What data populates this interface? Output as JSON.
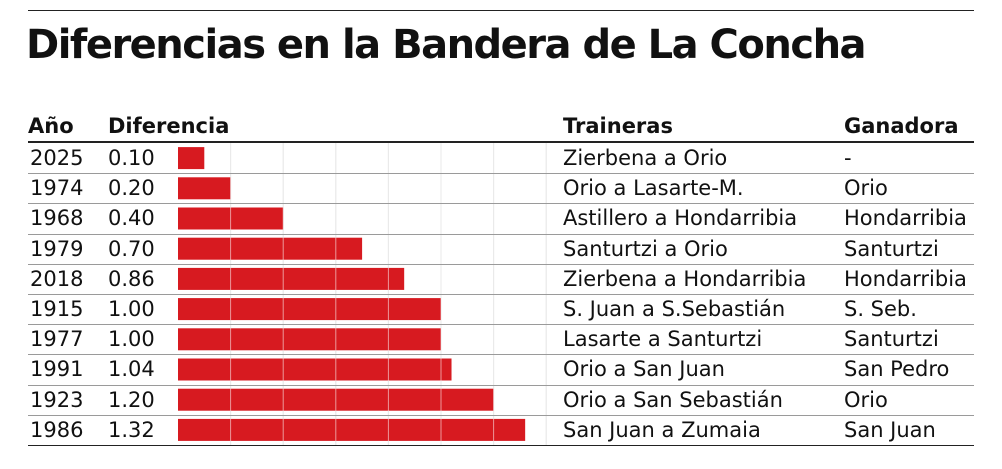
{
  "title": "Diferencias en la Bandera de La Concha",
  "headers": {
    "ano": "Año",
    "diferencia": "Diferencia",
    "traineras": "Traineras",
    "ganadora": "Ganadora"
  },
  "colors": {
    "bar": "#d71a20",
    "text": "#111111",
    "rule": "#222222",
    "row_rule": "#9a9a9a",
    "grid": "#ffffff"
  },
  "chart_data": {
    "type": "bar",
    "orientation": "horizontal",
    "title": "Diferencias en la Bandera de La Concha",
    "categories": [
      "2025",
      "1974",
      "1968",
      "1979",
      "2018",
      "1915",
      "1977",
      "1991",
      "1923",
      "1986"
    ],
    "values": [
      0.1,
      0.2,
      0.4,
      0.7,
      0.86,
      1.0,
      1.0,
      1.04,
      1.2,
      1.32
    ],
    "value_labels": [
      "0.10",
      "0.20",
      "0.40",
      "0.70",
      "0.86",
      "1.00",
      "1.00",
      "1.04",
      "1.20",
      "1.32"
    ],
    "traineras": [
      "Zierbena a Orio",
      "Orio a Lasarte-M.",
      "Astillero a Hondarribia",
      "Santurtzi a Orio",
      "Zierbena a Hondarribia",
      "S. Juan a S.Sebastián",
      "Lasarte a Santurtzi",
      "Orio a San Juan",
      "Orio a San Sebastián",
      "San Juan a Zumaia"
    ],
    "ganadora": [
      "-",
      "Orio",
      "Hondarribia",
      "Santurtzi",
      "Hondarribia",
      "S. Seb.",
      "Santurtzi",
      "San Pedro",
      "Orio",
      "San Juan"
    ],
    "xlim": [
      0,
      1.4
    ],
    "grid": true,
    "grid_step": 0.2
  }
}
